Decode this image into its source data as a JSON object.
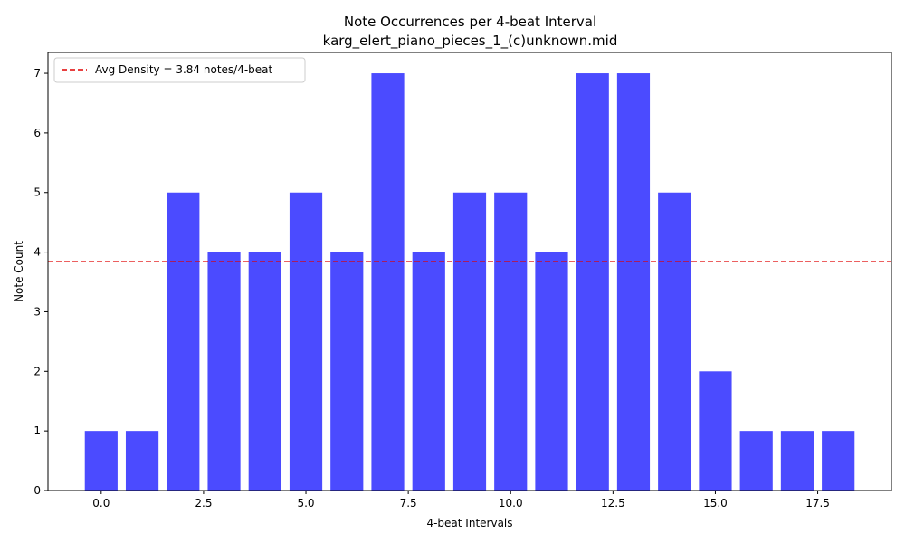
{
  "chart_data": {
    "type": "bar",
    "title": "Note Occurrences per 4-beat Interval",
    "subtitle": "karg_elert_piano_pieces_1_(c)unknown.mid",
    "xlabel": "4-beat Intervals",
    "ylabel": "Note Count",
    "x": [
      0,
      1,
      2,
      3,
      4,
      5,
      6,
      7,
      8,
      9,
      10,
      11,
      12,
      13,
      14,
      15,
      16,
      17,
      18
    ],
    "values": [
      1,
      1,
      5,
      4,
      4,
      5,
      4,
      7,
      4,
      5,
      5,
      4,
      7,
      7,
      5,
      2,
      1,
      1,
      1
    ],
    "bar_width": 0.8,
    "xlim": [
      -1.3,
      19.3
    ],
    "ylim": [
      0,
      7.35
    ],
    "xticks": [
      0,
      2.5,
      5,
      7.5,
      10,
      12.5,
      15,
      17.5
    ],
    "xtick_labels": [
      "0.0",
      "2.5",
      "5.0",
      "7.5",
      "10.0",
      "12.5",
      "15.0",
      "17.5"
    ],
    "yticks": [
      0,
      1,
      2,
      3,
      4,
      5,
      6,
      7
    ],
    "ytick_labels": [
      "0",
      "1",
      "2",
      "3",
      "4",
      "5",
      "6",
      "7"
    ],
    "bar_color": "#4b4bff",
    "average_line": {
      "value": 3.84,
      "label": "Avg Density = 3.84 notes/4-beat",
      "color": "#e00000",
      "style": "dashed"
    },
    "legend_position": "top-left",
    "grid": false
  }
}
